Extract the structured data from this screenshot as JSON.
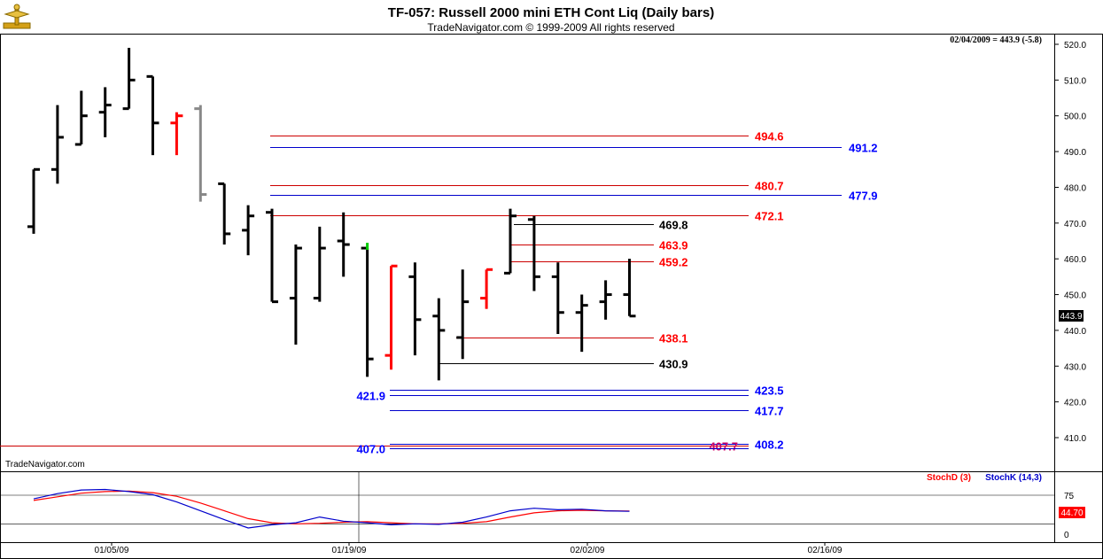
{
  "header": {
    "title": "TF-057:  Russell 2000 mini ETH Cont Liq  (Daily bars)",
    "copyright": "TradeNavigator.com © 1999-2009 All rights reserved",
    "quote": "02/04/2009 = 443.9 (-5.8)",
    "logo_icon": "trade-navigator-logo-icon"
  },
  "watermark": "TradeNavigator.com",
  "last_price": "443.9",
  "colors": {
    "up": "#000000",
    "down_red": "#ff0000",
    "gray": "#888888",
    "green": "#00cc00",
    "red_line": "#cc0000",
    "blue_line": "#0000cc",
    "black_line": "#000000",
    "level_red": "#ff0000",
    "level_blue": "#0000ff",
    "level_magenta": "#cc0066"
  },
  "chart_data": [
    {
      "type": "ohlc",
      "title": "TF-057:  Russell 2000 mini ETH Cont Liq  (Daily bars)",
      "ylim": [
        403,
        524
      ],
      "yticks": [
        410,
        420,
        430,
        440,
        450,
        460,
        470,
        480,
        490,
        500,
        510,
        520
      ],
      "ytick_labels": [
        "410.0",
        "420.0",
        "430.0",
        "440.0",
        "450.0",
        "460.0",
        "470.0",
        "480.0",
        "490.0",
        "500.0",
        "510.0",
        "520.0"
      ],
      "x_labels": [
        "01/05/09",
        "01/19/09",
        "02/02/09",
        "02/16/09"
      ],
      "bars": [
        {
          "date": "12/29/08",
          "open": 469,
          "high": 485,
          "low": 467,
          "close": 485,
          "color": "black"
        },
        {
          "date": "12/30/08",
          "open": 485,
          "high": 503,
          "low": 481,
          "close": 494,
          "color": "black"
        },
        {
          "date": "12/31/08",
          "open": 492,
          "high": 507,
          "low": 492,
          "close": 500,
          "color": "black"
        },
        {
          "date": "01/02/09",
          "open": 501,
          "high": 508,
          "low": 494,
          "close": 503,
          "color": "black"
        },
        {
          "date": "01/05/09",
          "open": 502,
          "high": 519,
          "low": 502,
          "close": 510,
          "color": "black"
        },
        {
          "date": "01/06/09",
          "open": 511,
          "high": 511,
          "low": 489,
          "close": 498,
          "color": "black"
        },
        {
          "date": "01/07/09",
          "open": 498,
          "high": 501,
          "low": 489,
          "close": 500,
          "color": "red"
        },
        {
          "date": "01/08/09",
          "open": 502,
          "high": 503,
          "low": 476,
          "close": 478,
          "color": "gray"
        },
        {
          "date": "01/09/09",
          "open": 481,
          "high": 481,
          "low": 464,
          "close": 467,
          "color": "black"
        },
        {
          "date": "01/12/09",
          "open": 468,
          "high": 475,
          "low": 461,
          "close": 472,
          "color": "black"
        },
        {
          "date": "01/13/09",
          "open": 473,
          "high": 474,
          "low": 448,
          "close": 448,
          "color": "black"
        },
        {
          "date": "01/14/09",
          "open": 449,
          "high": 464,
          "low": 436,
          "close": 463,
          "color": "black"
        },
        {
          "date": "01/15/09",
          "open": 449,
          "high": 469,
          "low": 448,
          "close": 463,
          "color": "black"
        },
        {
          "date": "01/16/09",
          "open": 465,
          "high": 473,
          "low": 455,
          "close": 464,
          "color": "black"
        },
        {
          "date": "01/20/09",
          "open": 463,
          "high": 463,
          "low": 427,
          "close": 432,
          "color": "black"
        },
        {
          "date": "01/21/09",
          "open": 433,
          "high": 458,
          "low": 429,
          "close": 458,
          "color": "red"
        },
        {
          "date": "01/22/09",
          "open": 455,
          "high": 459,
          "low": 433,
          "close": 443,
          "color": "black"
        },
        {
          "date": "01/23/09",
          "open": 444,
          "high": 449,
          "low": 426,
          "close": 440,
          "color": "black"
        },
        {
          "date": "01/26/09",
          "open": 438,
          "high": 457,
          "low": 432,
          "close": 448,
          "color": "black"
        },
        {
          "date": "01/27/09",
          "open": 449,
          "high": 457,
          "low": 446,
          "close": 457,
          "color": "red"
        },
        {
          "date": "01/28/09",
          "open": 456,
          "high": 474,
          "low": 456,
          "close": 472,
          "color": "black"
        },
        {
          "date": "01/29/09",
          "open": 471,
          "high": 472,
          "low": 451,
          "close": 455,
          "color": "black"
        },
        {
          "date": "01/30/09",
          "open": 455,
          "high": 459,
          "low": 439,
          "close": 445,
          "color": "black"
        },
        {
          "date": "02/02/09",
          "open": 445,
          "high": 450,
          "low": 434,
          "close": 447,
          "color": "black"
        },
        {
          "date": "02/03/09",
          "open": 448,
          "high": 454,
          "low": 443,
          "close": 450,
          "color": "black"
        },
        {
          "date": "02/04/09",
          "open": 450,
          "high": 460,
          "low": 444,
          "close": 444,
          "color": "black"
        }
      ],
      "levels": [
        {
          "value": 494.6,
          "label": "494.6",
          "color": "red"
        },
        {
          "value": 491.2,
          "label": "491.2",
          "color": "blue"
        },
        {
          "value": 480.7,
          "label": "480.7",
          "color": "red"
        },
        {
          "value": 477.9,
          "label": "477.9",
          "color": "blue"
        },
        {
          "value": 472.1,
          "label": "472.1",
          "color": "red"
        },
        {
          "value": 469.8,
          "label": "469.8",
          "color": "black"
        },
        {
          "value": 463.9,
          "label": "463.9",
          "color": "red"
        },
        {
          "value": 459.2,
          "label": "459.2",
          "color": "red"
        },
        {
          "value": 438.1,
          "label": "438.1",
          "color": "red"
        },
        {
          "value": 430.9,
          "label": "430.9",
          "color": "black"
        },
        {
          "value": 423.5,
          "label": "423.5",
          "color": "blue"
        },
        {
          "value": 421.9,
          "label": "421.9",
          "color": "blue"
        },
        {
          "value": 417.7,
          "label": "417.7",
          "color": "blue"
        },
        {
          "value": 408.2,
          "label": "408.2",
          "color": "blue"
        },
        {
          "value": 407.7,
          "label": "407.7",
          "color": "magenta"
        },
        {
          "value": 407.0,
          "label": "407.0",
          "color": "blue"
        }
      ]
    },
    {
      "type": "line",
      "title": "",
      "ylim": [
        -10,
        110
      ],
      "yticks": [
        0,
        75
      ],
      "ytick_labels": [
        "0",
        "75"
      ],
      "last_value": "44.70",
      "series": [
        {
          "name": "StochD (3)",
          "color": "red",
          "values": [
            65,
            72,
            79,
            82,
            83,
            80,
            73,
            60,
            45,
            30,
            22,
            20,
            21,
            23,
            24,
            22,
            20,
            20,
            21,
            24,
            33,
            41,
            45,
            46,
            45,
            44.7
          ]
        },
        {
          "name": "StochK (14,3)",
          "color": "blue",
          "values": [
            68,
            78,
            85,
            86,
            82,
            76,
            62,
            45,
            28,
            12,
            18,
            22,
            33,
            25,
            22,
            18,
            20,
            19,
            23,
            33,
            45,
            50,
            47,
            48,
            45,
            44
          ]
        }
      ]
    }
  ]
}
